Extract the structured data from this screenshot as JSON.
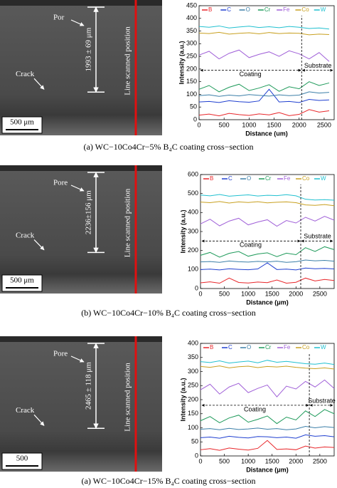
{
  "panels": [
    {
      "pore": "Por",
      "crack": "Crack",
      "thickness": "1993 ± 69 μm",
      "line": "Line scanned position",
      "scale": "500 μm",
      "caption": "(a) WC−10Co4Cr−5% B₄C coating cross−section"
    },
    {
      "pore": "Pore",
      "crack": "Crack",
      "thickness": "2236±156 μm",
      "line": "Line scanned position",
      "scale": "500 μm",
      "caption": "(b) WC−10Co4Cr−10% B₄C coating cross−section"
    },
    {
      "pore": "Pore",
      "crack": "Crack",
      "thickness": "2465 ± 118 μm",
      "line": "Line scanned position",
      "scale": "500",
      "caption": "(a) WC−10Co4Cr−15% B₄C coating cross−section"
    }
  ],
  "chart_data": [
    {
      "type": "line",
      "xlabel": "Distance (um)",
      "ylabel": "Intensity (a.u.)",
      "legend": "top",
      "boundary_x": 2050,
      "arrow_y": 195,
      "left_label": "Coating",
      "right_label": "Substrate",
      "xlim": [
        0,
        2700
      ],
      "xticks": [
        0,
        500,
        1000,
        1500,
        2000,
        2500
      ],
      "ylim": [
        0,
        450
      ],
      "yticks": [
        0,
        50,
        100,
        150,
        200,
        250,
        300,
        350,
        400,
        450
      ],
      "x": [
        0,
        200,
        400,
        600,
        800,
        1000,
        1200,
        1400,
        1600,
        1800,
        2000,
        2200,
        2400,
        2600
      ],
      "series": [
        {
          "name": "B",
          "color": "#e8262a",
          "values": [
            18,
            22,
            15,
            25,
            20,
            17,
            23,
            19,
            28,
            16,
            21,
            40,
            30,
            35
          ]
        },
        {
          "name": "C",
          "color": "#1f3fd0",
          "values": [
            70,
            72,
            68,
            75,
            71,
            69,
            74,
            120,
            70,
            72,
            68,
            80,
            76,
            78
          ]
        },
        {
          "name": "O",
          "color": "#3c7fa8",
          "values": [
            95,
            98,
            92,
            97,
            94,
            99,
            96,
            93,
            98,
            95,
            97,
            110,
            105,
            108
          ]
        },
        {
          "name": "Cr",
          "color": "#1e9a5a",
          "values": [
            120,
            135,
            110,
            128,
            140,
            115,
            125,
            138,
            112,
            130,
            122,
            150,
            135,
            145
          ]
        },
        {
          "name": "Fe",
          "color": "#a060d8",
          "values": [
            255,
            270,
            240,
            262,
            275,
            245,
            258,
            268,
            250,
            272,
            260,
            240,
            265,
            230
          ]
        },
        {
          "name": "Co",
          "color": "#c8a020",
          "values": [
            342,
            340,
            345,
            338,
            341,
            343,
            339,
            344,
            340,
            342,
            341,
            335,
            338,
            336
          ]
        },
        {
          "name": "W",
          "color": "#20c0d0",
          "values": [
            368,
            365,
            370,
            362,
            366,
            369,
            364,
            367,
            363,
            368,
            365,
            360,
            362,
            358
          ]
        }
      ]
    },
    {
      "type": "line",
      "xlabel": "Distance (μm)",
      "ylabel": "Intensity (a.u.)",
      "legend": "top",
      "boundary_x": 2100,
      "arrow_y": 250,
      "left_label": "Coating",
      "right_label": "Substrate",
      "xlim": [
        0,
        2800
      ],
      "xticks": [
        0,
        500,
        1000,
        1500,
        2000,
        2500
      ],
      "ylim": [
        0,
        600
      ],
      "yticks": [
        0,
        100,
        200,
        300,
        400,
        500,
        600
      ],
      "x": [
        0,
        200,
        400,
        600,
        800,
        1000,
        1200,
        1400,
        1600,
        1800,
        2000,
        2200,
        2400,
        2600,
        2800
      ],
      "series": [
        {
          "name": "B",
          "color": "#e8262a",
          "values": [
            30,
            35,
            28,
            55,
            32,
            29,
            34,
            31,
            45,
            28,
            33,
            55,
            40,
            48,
            42
          ]
        },
        {
          "name": "C",
          "color": "#1f3fd0",
          "values": [
            100,
            102,
            98,
            104,
            101,
            99,
            103,
            135,
            100,
            102,
            98,
            108,
            104,
            106,
            103
          ]
        },
        {
          "name": "O",
          "color": "#3c7fa8",
          "values": [
            140,
            142,
            138,
            145,
            141,
            139,
            143,
            140,
            144,
            138,
            141,
            150,
            146,
            148,
            144
          ]
        },
        {
          "name": "Cr",
          "color": "#1e9a5a",
          "values": [
            175,
            190,
            165,
            185,
            195,
            170,
            182,
            188,
            168,
            186,
            178,
            215,
            195,
            220,
            205
          ]
        },
        {
          "name": "Fe",
          "color": "#a060d8",
          "values": [
            340,
            365,
            330,
            355,
            370,
            335,
            350,
            362,
            328,
            358,
            345,
            375,
            355,
            380,
            360
          ]
        },
        {
          "name": "Co",
          "color": "#c8a020",
          "values": [
            455,
            452,
            458,
            450,
            456,
            453,
            457,
            451,
            454,
            456,
            452,
            440,
            438,
            442,
            436
          ]
        },
        {
          "name": "W",
          "color": "#20c0d0",
          "values": [
            492,
            488,
            495,
            486,
            490,
            493,
            487,
            491,
            489,
            494,
            488,
            470,
            466,
            468,
            465
          ]
        }
      ]
    },
    {
      "type": "line",
      "xlabel": "Distance (μm)",
      "ylabel": "Intensity (a.u.)",
      "legend": "top",
      "boundary_x": 2280,
      "arrow_y": 180,
      "left_label": "Coating",
      "right_label": "Substrate",
      "xlim": [
        0,
        2800
      ],
      "xticks": [
        0,
        500,
        1000,
        1500,
        2000,
        2500
      ],
      "ylim": [
        0,
        400
      ],
      "yticks": [
        0,
        50,
        100,
        150,
        200,
        250,
        300,
        350,
        400
      ],
      "x": [
        0,
        200,
        400,
        600,
        800,
        1000,
        1200,
        1400,
        1600,
        1800,
        2000,
        2200,
        2400,
        2600,
        2800
      ],
      "series": [
        {
          "name": "B",
          "color": "#e8262a",
          "values": [
            22,
            26,
            20,
            28,
            24,
            21,
            27,
            55,
            23,
            25,
            22,
            35,
            28,
            32,
            30
          ]
        },
        {
          "name": "C",
          "color": "#1f3fd0",
          "values": [
            65,
            67,
            63,
            70,
            66,
            64,
            69,
            68,
            65,
            67,
            63,
            75,
            70,
            72,
            68
          ]
        },
        {
          "name": "O",
          "color": "#3c7fa8",
          "values": [
            95,
            97,
            93,
            98,
            94,
            96,
            99,
            95,
            97,
            93,
            96,
            105,
            100,
            104,
            101
          ]
        },
        {
          "name": "Cr",
          "color": "#1e9a5a",
          "values": [
            125,
            140,
            118,
            135,
            145,
            120,
            130,
            142,
            115,
            138,
            128,
            160,
            140,
            165,
            150
          ]
        },
        {
          "name": "Fe",
          "color": "#a060d8",
          "values": [
            235,
            255,
            220,
            245,
            258,
            225,
            240,
            252,
            210,
            248,
            238,
            265,
            245,
            270,
            240
          ]
        },
        {
          "name": "Co",
          "color": "#c8a020",
          "values": [
            318,
            315,
            320,
            313,
            317,
            319,
            314,
            318,
            316,
            319,
            315,
            312,
            310,
            313,
            309
          ]
        },
        {
          "name": "W",
          "color": "#20c0d0",
          "values": [
            335,
            332,
            338,
            330,
            334,
            337,
            331,
            340,
            333,
            336,
            332,
            328,
            326,
            330,
            325
          ]
        }
      ]
    }
  ]
}
